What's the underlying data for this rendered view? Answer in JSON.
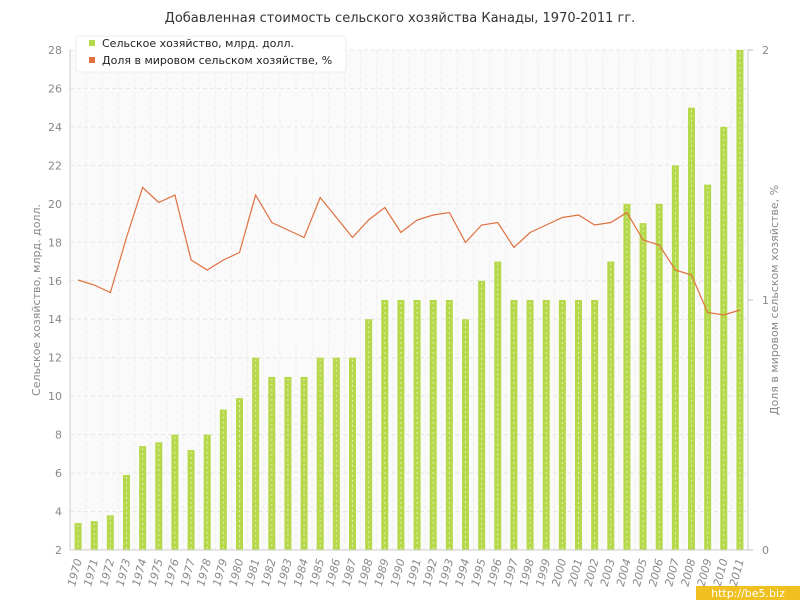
{
  "chart_data": {
    "type": "bar",
    "title": "Добавленная стоимость сельского хозяйства Канады, 1970-2011 гг.",
    "ylabel": "Сельское хозяйство, млрд. долл.",
    "y2label": "Доля в мировом сельском хозяйстве, %",
    "ylim": [
      2,
      28
    ],
    "yticks": [
      2,
      4,
      6,
      8,
      10,
      12,
      14,
      16,
      18,
      20,
      22,
      24,
      26,
      28
    ],
    "y2lim": [
      0,
      2
    ],
    "y2ticks": [
      0,
      1,
      2
    ],
    "grid": true,
    "legend_position": "top-left",
    "categories": [
      "1970",
      "1971",
      "1972",
      "1973",
      "1974",
      "1975",
      "1976",
      "1977",
      "1978",
      "1979",
      "1980",
      "1981",
      "1982",
      "1983",
      "1984",
      "1985",
      "1986",
      "1987",
      "1988",
      "1989",
      "1990",
      "1991",
      "1992",
      "1993",
      "1994",
      "1995",
      "1996",
      "1997",
      "1998",
      "1999",
      "2000",
      "2001",
      "2002",
      "2003",
      "2004",
      "2005",
      "2006",
      "2007",
      "2008",
      "2009",
      "2010",
      "2011"
    ],
    "series": [
      {
        "name": "Сельское хозяйство, млрд. долл.",
        "type": "bar",
        "axis": "left",
        "color": "#b5d94a",
        "values": [
          3.4,
          3.5,
          3.8,
          5.9,
          7.4,
          7.6,
          8.0,
          7.2,
          8.0,
          9.3,
          9.9,
          12.0,
          11.0,
          11.0,
          11.0,
          12.0,
          12.0,
          12.0,
          14.0,
          15.0,
          15.0,
          15.0,
          15.0,
          15.0,
          14.0,
          16.0,
          17.0,
          15.0,
          15.0,
          15.0,
          15.0,
          15.0,
          15.0,
          17.0,
          20.0,
          19.0,
          20.0,
          22.0,
          25.0,
          21.0,
          24.0,
          28.0
        ]
      },
      {
        "name": "Доля в мировом сельском хозяйстве, %",
        "type": "line",
        "axis": "right",
        "color": "#e07040",
        "values": [
          1.08,
          1.06,
          1.03,
          1.25,
          1.45,
          1.39,
          1.42,
          1.16,
          1.12,
          1.16,
          1.19,
          1.42,
          1.31,
          1.28,
          1.25,
          1.41,
          1.33,
          1.25,
          1.32,
          1.37,
          1.27,
          1.32,
          1.34,
          1.35,
          1.23,
          1.3,
          1.31,
          1.21,
          1.27,
          1.3,
          1.33,
          1.34,
          1.3,
          1.31,
          1.35,
          1.24,
          1.22,
          1.12,
          1.1,
          0.95,
          0.94,
          0.96
        ]
      }
    ]
  },
  "watermark": "http://be5.biz"
}
